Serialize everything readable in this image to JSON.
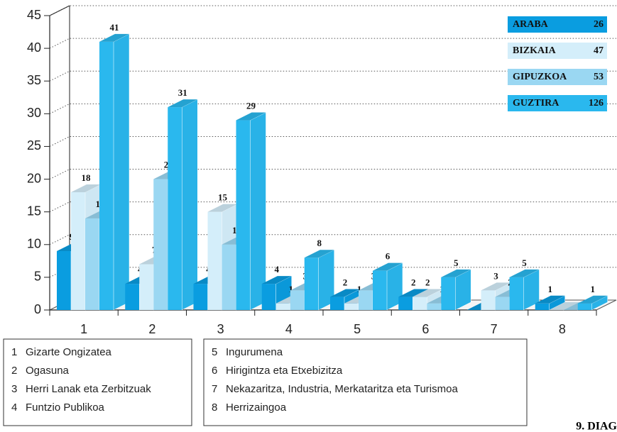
{
  "chart_data": {
    "type": "bar3d",
    "categories": [
      "1",
      "2",
      "3",
      "4",
      "5",
      "6",
      "7",
      "8"
    ],
    "series": [
      {
        "name": "ARABA",
        "total": 26,
        "color": "#0a9de0",
        "values": [
          9,
          4,
          4,
          4,
          2,
          2,
          0,
          1
        ],
        "value_labels": [
          "9",
          "4",
          "4",
          "4",
          "2",
          "2",
          null,
          "1"
        ]
      },
      {
        "name": "BIZKAIA",
        "total": 47,
        "color": "#d4eefa",
        "values": [
          18,
          7,
          15,
          1,
          1,
          2,
          3,
          0
        ],
        "value_labels": [
          "18",
          "7",
          "15",
          "1",
          "1",
          "2",
          "3",
          null
        ]
      },
      {
        "name": "GIPUZKOA",
        "total": 53,
        "color": "#9ad7f2",
        "values": [
          14,
          20,
          10,
          3,
          3,
          1,
          2,
          0
        ],
        "value_labels": [
          "14",
          "20",
          "10",
          "3",
          "3",
          "1",
          "2",
          null
        ]
      },
      {
        "name": "GUZTIRA",
        "total": 126,
        "color": "#2ab8ee",
        "values": [
          41,
          31,
          29,
          8,
          6,
          5,
          5,
          1
        ],
        "value_labels": [
          "41",
          "31",
          "29",
          "8",
          "6",
          "5",
          "5",
          "1"
        ]
      }
    ],
    "ylim": [
      0,
      45
    ],
    "yticks": [
      0,
      5,
      10,
      15,
      20,
      25,
      30,
      35,
      40,
      45
    ],
    "grid": true,
    "category_names": [
      "Gizarte Ongizatea",
      "Ogasuna",
      "Herri Lanak eta Zerbitzuak",
      "Funtzio Publikoa",
      "Ingurumena",
      "Hirigintza eta Etxebizitza",
      "Nekazaritza, Industria, Merkataritza eta Turismoa",
      "Herrizaingoa"
    ],
    "footer": "9. DIAG"
  }
}
